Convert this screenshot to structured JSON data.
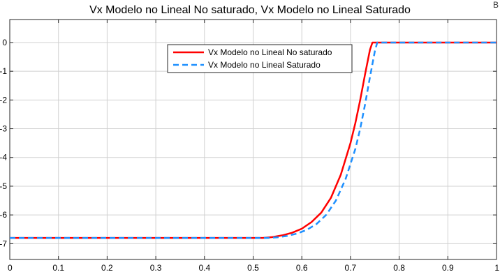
{
  "window": {
    "corner_glyph": "B"
  },
  "chart_data": {
    "type": "line",
    "title": "Vx Modelo no Lineal No saturado, Vx Modelo no Lineal Saturado",
    "xlabel": "",
    "ylabel": "",
    "xlim": [
      0,
      1
    ],
    "ylim": [
      -7.55,
      0.8
    ],
    "xticks": [
      0,
      0.1,
      0.2,
      0.3,
      0.4,
      0.5,
      0.6,
      0.7,
      0.8,
      0.9,
      1
    ],
    "yticks": [
      0,
      -1,
      -2,
      -3,
      -4,
      -5,
      -6,
      -7
    ],
    "grid": true,
    "legend": {
      "placement": "top-center"
    },
    "series": [
      {
        "name": "Vx Modelo no Lineal No saturado",
        "color": "#ff0000",
        "style": "solid",
        "x": [
          0,
          0.52,
          0.54,
          0.56,
          0.58,
          0.6,
          0.62,
          0.64,
          0.66,
          0.68,
          0.7,
          0.71,
          0.72,
          0.73,
          0.74,
          0.745,
          1
        ],
        "y": [
          -6.8,
          -6.8,
          -6.77,
          -6.71,
          -6.62,
          -6.48,
          -6.25,
          -5.92,
          -5.4,
          -4.6,
          -3.5,
          -2.8,
          -2.0,
          -1.1,
          -0.25,
          0,
          0
        ]
      },
      {
        "name": "Vx Modelo no Lineal Saturado",
        "color": "#1e90ff",
        "style": "dashed",
        "x": [
          0,
          0.53,
          0.55,
          0.57,
          0.59,
          0.61,
          0.63,
          0.65,
          0.67,
          0.69,
          0.71,
          0.72,
          0.73,
          0.74,
          0.75,
          0.755,
          1
        ],
        "y": [
          -6.8,
          -6.8,
          -6.78,
          -6.73,
          -6.65,
          -6.52,
          -6.32,
          -6.0,
          -5.5,
          -4.75,
          -3.7,
          -3.0,
          -2.15,
          -1.2,
          -0.3,
          0,
          0
        ]
      }
    ]
  }
}
